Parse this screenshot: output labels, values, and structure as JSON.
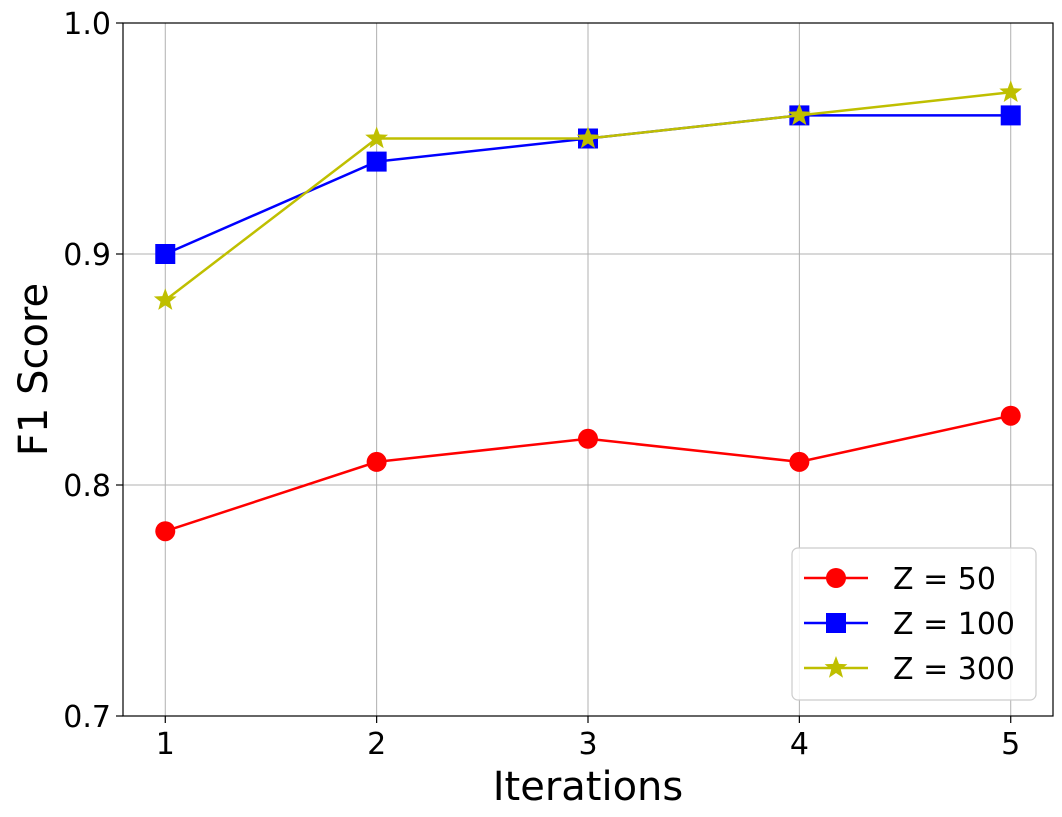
{
  "chart_data": {
    "type": "line",
    "xlabel": "Iterations",
    "ylabel": "F1 Score",
    "x": [
      1,
      2,
      3,
      4,
      5
    ],
    "xlim": [
      0.8,
      5.2
    ],
    "ylim": [
      0.7,
      1.0
    ],
    "xticks": [
      1,
      2,
      3,
      4,
      5
    ],
    "xtick_labels": [
      "1",
      "2",
      "3",
      "4",
      "5"
    ],
    "yticks": [
      0.7,
      0.8,
      0.9,
      1.0
    ],
    "ytick_labels": [
      "0.7",
      "0.8",
      "0.9",
      "1.0"
    ],
    "grid": true,
    "legend_position": "bottom-right",
    "series": [
      {
        "name": "Z = 50",
        "values": [
          0.78,
          0.81,
          0.82,
          0.81,
          0.83
        ],
        "color": "#ff0000",
        "marker": "circle"
      },
      {
        "name": "Z = 100",
        "values": [
          0.9,
          0.94,
          0.95,
          0.96,
          0.96
        ],
        "color": "#0000ff",
        "marker": "square"
      },
      {
        "name": "Z = 300",
        "values": [
          0.88,
          0.95,
          0.95,
          0.96,
          0.97
        ],
        "color": "#bfbf00",
        "marker": "star"
      }
    ]
  }
}
